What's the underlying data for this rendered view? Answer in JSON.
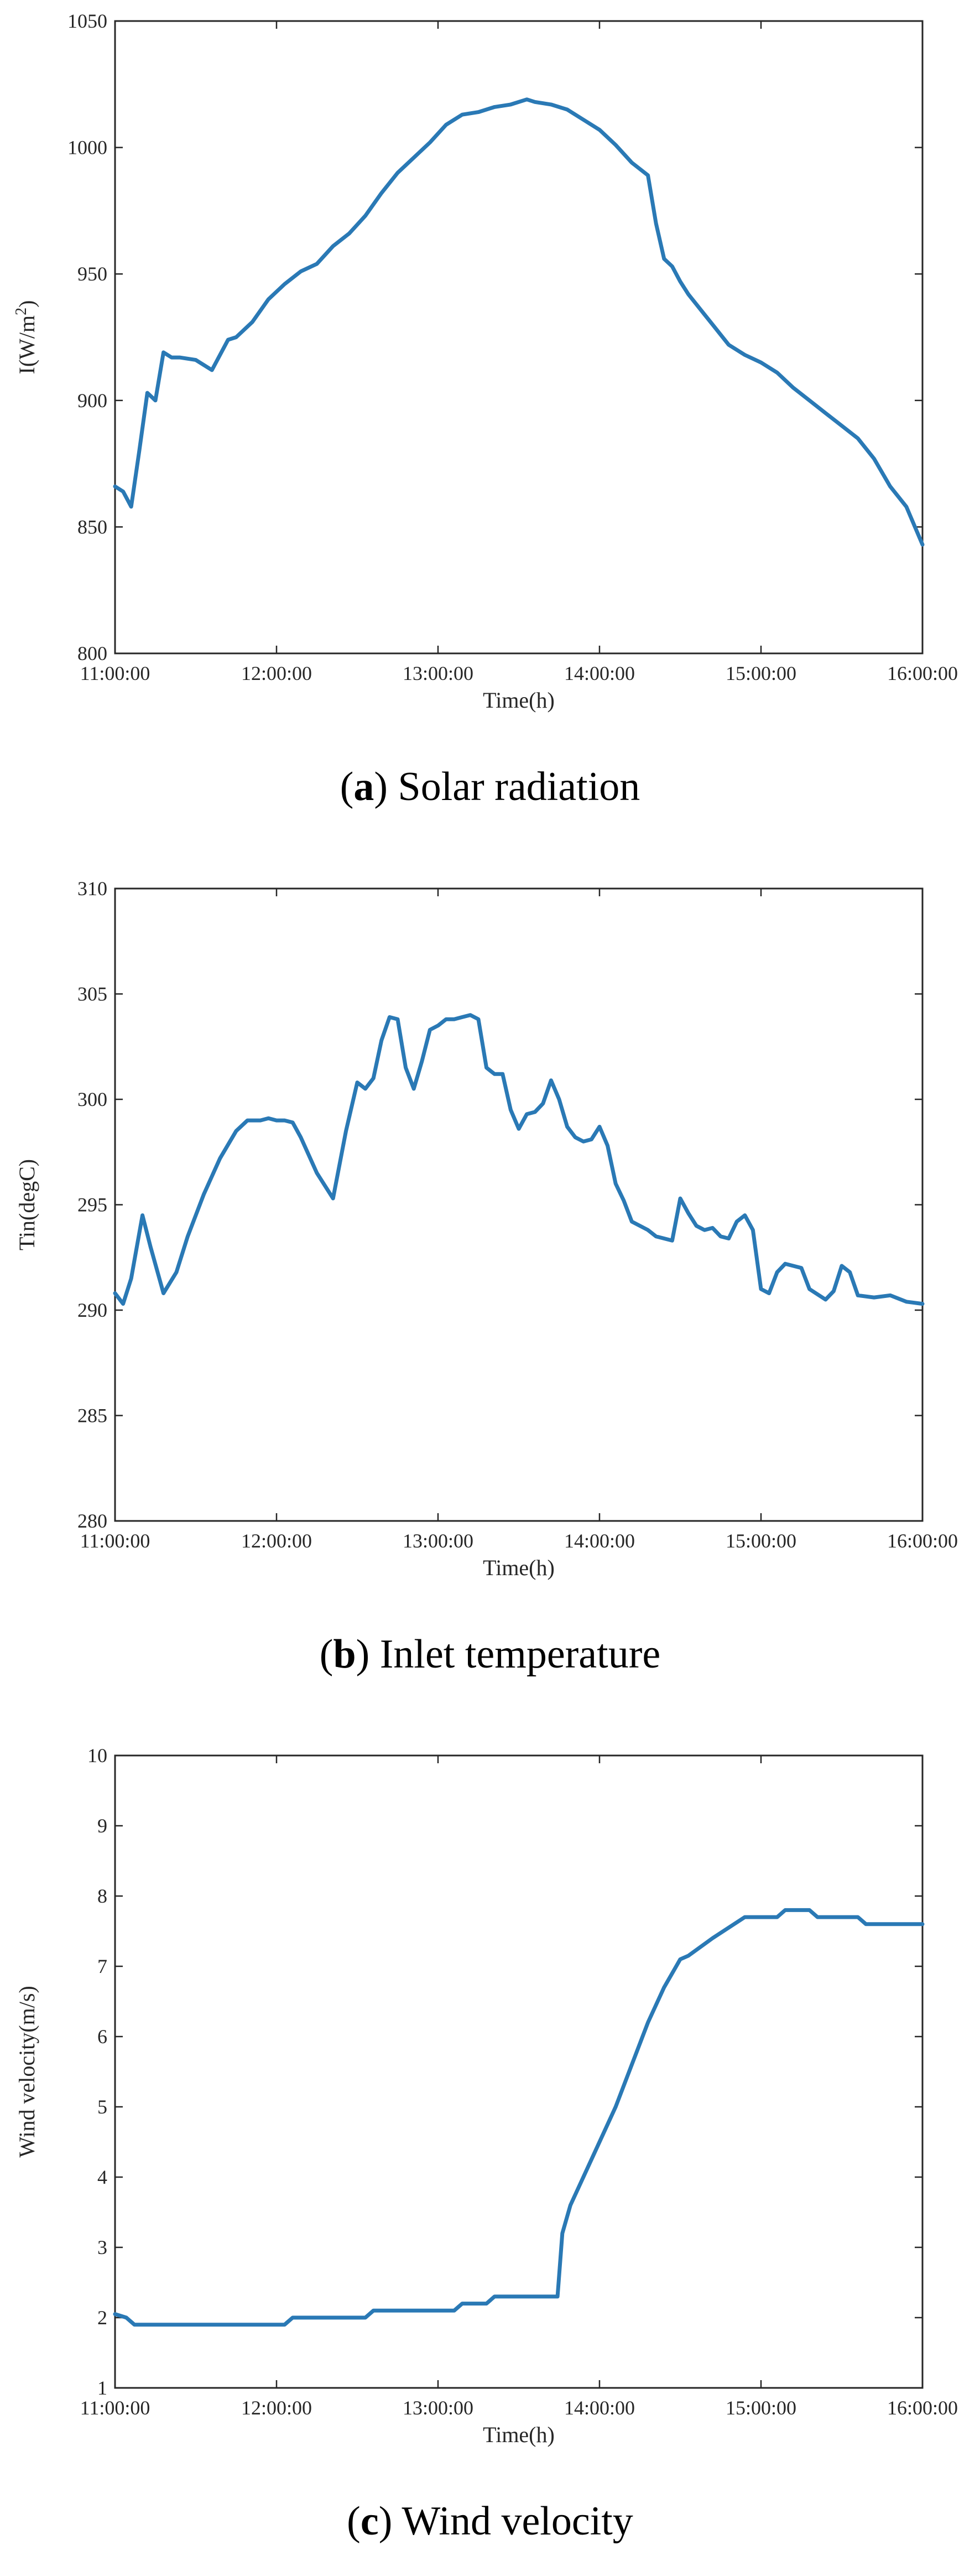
{
  "chart_data": [
    {
      "type": "line",
      "caption_letter": "a",
      "caption_text": "Solar radiation",
      "xlabel": "Time(h)",
      "ylabel_main": "I(W/m",
      "ylabel_sup": "2",
      "ylabel_end": ")",
      "x_ticks": [
        "11:00:00",
        "12:00:00",
        "13:00:00",
        "14:00:00",
        "15:00:00",
        "16:00:00"
      ],
      "xlim": [
        11,
        16
      ],
      "ylim": [
        800,
        1050
      ],
      "y_ticks": [
        800,
        850,
        900,
        950,
        1000,
        1050
      ],
      "grid": false,
      "line_color": "#2a79b5",
      "series": [
        {
          "x": [
            11.0,
            11.05,
            11.1,
            11.15,
            11.2,
            11.25,
            11.3,
            11.35,
            11.4,
            11.5,
            11.6,
            11.65,
            11.7,
            11.75,
            11.85,
            11.95,
            12.05,
            12.15,
            12.25,
            12.35,
            12.45,
            12.55,
            12.65,
            12.75,
            12.85,
            12.95,
            13.05,
            13.15,
            13.25,
            13.35,
            13.45,
            13.55,
            13.6,
            13.7,
            13.8,
            13.9,
            14.0,
            14.1,
            14.2,
            14.3,
            14.35,
            14.4,
            14.45,
            14.5,
            14.55,
            14.6,
            14.7,
            14.8,
            14.9,
            15.0,
            15.1,
            15.2,
            15.3,
            15.4,
            15.5,
            15.6,
            15.7,
            15.8,
            15.9,
            16.0
          ],
          "y": [
            866,
            864,
            858,
            880,
            903,
            900,
            919,
            917,
            917,
            916,
            912,
            918,
            924,
            925,
            931,
            940,
            946,
            951,
            954,
            961,
            966,
            973,
            982,
            990,
            996,
            1002,
            1009,
            1013,
            1014,
            1016,
            1017,
            1019,
            1018,
            1017,
            1015,
            1011,
            1007,
            1001,
            994,
            989,
            970,
            956,
            953,
            947,
            942,
            938,
            930,
            922,
            918,
            915,
            911,
            905,
            900,
            895,
            890,
            885,
            877,
            866,
            858,
            843
          ]
        }
      ]
    },
    {
      "type": "line",
      "caption_letter": "b",
      "caption_text": "Inlet temperature",
      "xlabel": "Time(h)",
      "ylabel": "Tin(degC)",
      "x_ticks": [
        "11:00:00",
        "12:00:00",
        "13:00:00",
        "14:00:00",
        "15:00:00",
        "16:00:00"
      ],
      "xlim": [
        11,
        16
      ],
      "ylim": [
        280,
        310
      ],
      "y_ticks": [
        280,
        285,
        290,
        295,
        300,
        305,
        310
      ],
      "grid": false,
      "line_color": "#2a79b5",
      "series": [
        {
          "x": [
            11.0,
            11.05,
            11.1,
            11.17,
            11.22,
            11.3,
            11.38,
            11.45,
            11.55,
            11.65,
            11.75,
            11.82,
            11.9,
            11.95,
            12.0,
            12.05,
            12.1,
            12.15,
            12.25,
            12.35,
            12.43,
            12.5,
            12.55,
            12.6,
            12.65,
            12.7,
            12.75,
            12.8,
            12.85,
            12.9,
            12.95,
            13.0,
            13.05,
            13.1,
            13.15,
            13.2,
            13.25,
            13.3,
            13.35,
            13.4,
            13.45,
            13.5,
            13.55,
            13.6,
            13.65,
            13.7,
            13.75,
            13.8,
            13.85,
            13.9,
            13.95,
            14.0,
            14.05,
            14.1,
            14.15,
            14.2,
            14.3,
            14.35,
            14.45,
            14.5,
            14.55,
            14.6,
            14.65,
            14.7,
            14.75,
            14.8,
            14.85,
            14.9,
            14.95,
            15.0,
            15.05,
            15.1,
            15.15,
            15.25,
            15.3,
            15.4,
            15.45,
            15.5,
            15.55,
            15.6,
            15.7,
            15.8,
            15.9,
            16.0
          ],
          "y": [
            290.8,
            290.3,
            291.5,
            294.5,
            293.0,
            290.8,
            291.8,
            293.5,
            295.5,
            297.2,
            298.5,
            299.0,
            299.0,
            299.1,
            299.0,
            299.0,
            298.9,
            298.2,
            296.5,
            295.3,
            298.5,
            300.8,
            300.5,
            301.0,
            302.8,
            303.9,
            303.8,
            301.5,
            300.5,
            301.8,
            303.3,
            303.5,
            303.8,
            303.8,
            303.9,
            304.0,
            303.8,
            301.5,
            301.2,
            301.2,
            299.5,
            298.6,
            299.3,
            299.4,
            299.8,
            300.9,
            300.0,
            298.7,
            298.2,
            298.0,
            298.1,
            298.7,
            297.8,
            296.0,
            295.2,
            294.2,
            293.8,
            293.5,
            293.3,
            295.3,
            294.6,
            294.0,
            293.8,
            293.9,
            293.5,
            293.4,
            294.2,
            294.5,
            293.8,
            291.0,
            290.8,
            291.8,
            292.2,
            292.0,
            291.0,
            290.5,
            290.9,
            292.1,
            291.8,
            290.7,
            290.6,
            290.7,
            290.4,
            290.3
          ]
        }
      ]
    },
    {
      "type": "line",
      "caption_letter": "c",
      "caption_text": "Wind velocity",
      "xlabel": "Time(h)",
      "ylabel": "Wind velocity(m/s)",
      "x_ticks": [
        "11:00:00",
        "12:00:00",
        "13:00:00",
        "14:00:00",
        "15:00:00",
        "16:00:00"
      ],
      "xlim": [
        11,
        16
      ],
      "ylim": [
        1,
        10
      ],
      "y_ticks": [
        1,
        2,
        3,
        4,
        5,
        6,
        7,
        8,
        9,
        10
      ],
      "grid": false,
      "line_color": "#2a79b5",
      "series": [
        {
          "x": [
            11.0,
            11.07,
            11.12,
            11.5,
            12.05,
            12.1,
            12.55,
            12.6,
            13.1,
            13.15,
            13.3,
            13.35,
            13.74,
            13.77,
            13.82,
            13.9,
            14.0,
            14.1,
            14.2,
            14.3,
            14.4,
            14.5,
            14.55,
            14.7,
            14.9,
            15.1,
            15.15,
            15.3,
            15.35,
            15.6,
            15.65,
            16.0
          ],
          "y": [
            2.05,
            2.0,
            1.9,
            1.9,
            1.9,
            2.0,
            2.0,
            2.1,
            2.1,
            2.2,
            2.2,
            2.3,
            2.3,
            3.2,
            3.6,
            4.0,
            4.5,
            5.0,
            5.6,
            6.2,
            6.7,
            7.1,
            7.15,
            7.4,
            7.7,
            7.7,
            7.8,
            7.8,
            7.7,
            7.7,
            7.6,
            7.6
          ]
        }
      ]
    }
  ]
}
